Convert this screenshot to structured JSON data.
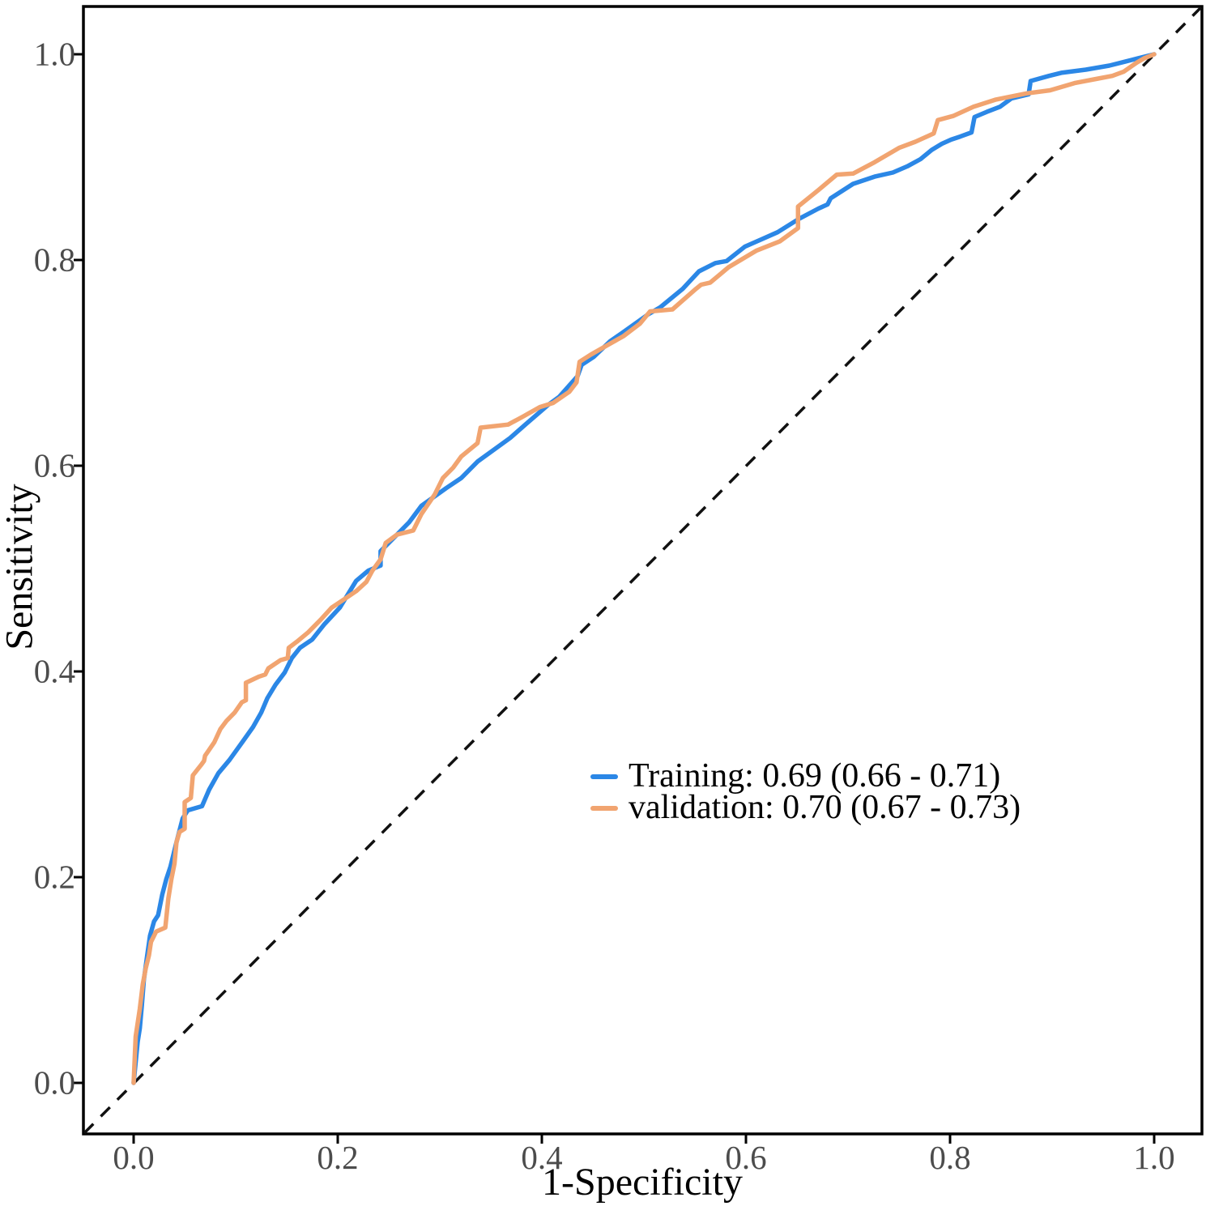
{
  "colors": {
    "background": "#ffffff",
    "panel_border": "#000000",
    "reference_line": "#111111",
    "axis_tick_text": "#4c4c4c",
    "axis_title_text": "#000000",
    "training_blue": "#2b87e6",
    "validation_orange": "#f1a470"
  },
  "chart_data": {
    "type": "line",
    "title": "",
    "xlabel": "1-Specificity",
    "ylabel": "Sensitivity",
    "xlim": [
      0,
      1
    ],
    "ylim": [
      0,
      1
    ],
    "x_ticks": [
      "0.0",
      "0.2",
      "0.4",
      "0.6",
      "0.8",
      "1.0"
    ],
    "y_ticks": [
      "0.0",
      "0.2",
      "0.4",
      "0.6",
      "0.8",
      "1.0"
    ],
    "grid": "off",
    "legend_position": "inside-right-middle",
    "reference_line": {
      "style": "dashed-diagonal",
      "from": [
        0,
        0
      ],
      "to": [
        1,
        1
      ]
    },
    "series": [
      {
        "name": "Training",
        "auc": "0.69",
        "ci": "0.66 - 0.71",
        "legend_label": "Training: 0.69 (0.66 - 0.71)",
        "color": "#2b87e6",
        "points": [
          [
            0,
            0
          ],
          [
            0.004,
            0.04
          ],
          [
            0.006,
            0.053
          ],
          [
            0.008,
            0.075
          ],
          [
            0.01,
            0.1
          ],
          [
            0.013,
            0.122
          ],
          [
            0.016,
            0.143
          ],
          [
            0.02,
            0.157
          ],
          [
            0.024,
            0.163
          ],
          [
            0.028,
            0.183
          ],
          [
            0.032,
            0.198
          ],
          [
            0.036,
            0.21
          ],
          [
            0.042,
            0.234
          ],
          [
            0.048,
            0.257
          ],
          [
            0.053,
            0.265
          ],
          [
            0.067,
            0.269
          ],
          [
            0.074,
            0.285
          ],
          [
            0.083,
            0.301
          ],
          [
            0.094,
            0.314
          ],
          [
            0.107,
            0.332
          ],
          [
            0.117,
            0.346
          ],
          [
            0.125,
            0.36
          ],
          [
            0.131,
            0.374
          ],
          [
            0.139,
            0.387
          ],
          [
            0.148,
            0.399
          ],
          [
            0.155,
            0.413
          ],
          [
            0.163,
            0.423
          ],
          [
            0.175,
            0.431
          ],
          [
            0.187,
            0.446
          ],
          [
            0.202,
            0.462
          ],
          [
            0.218,
            0.488
          ],
          [
            0.23,
            0.498
          ],
          [
            0.242,
            0.503
          ],
          [
            0.242,
            0.517
          ],
          [
            0.25,
            0.525
          ],
          [
            0.27,
            0.545
          ],
          [
            0.282,
            0.561
          ],
          [
            0.306,
            0.578
          ],
          [
            0.321,
            0.588
          ],
          [
            0.337,
            0.604
          ],
          [
            0.369,
            0.627
          ],
          [
            0.385,
            0.641
          ],
          [
            0.406,
            0.659
          ],
          [
            0.417,
            0.667
          ],
          [
            0.435,
            0.687
          ],
          [
            0.439,
            0.698
          ],
          [
            0.451,
            0.706
          ],
          [
            0.467,
            0.721
          ],
          [
            0.48,
            0.73
          ],
          [
            0.504,
            0.747
          ],
          [
            0.516,
            0.754
          ],
          [
            0.538,
            0.772
          ],
          [
            0.554,
            0.789
          ],
          [
            0.57,
            0.797
          ],
          [
            0.581,
            0.799
          ],
          [
            0.599,
            0.813
          ],
          [
            0.615,
            0.82
          ],
          [
            0.631,
            0.827
          ],
          [
            0.652,
            0.84
          ],
          [
            0.671,
            0.85
          ],
          [
            0.68,
            0.854
          ],
          [
            0.683,
            0.86
          ],
          [
            0.705,
            0.874
          ],
          [
            0.726,
            0.881
          ],
          [
            0.744,
            0.885
          ],
          [
            0.758,
            0.891
          ],
          [
            0.771,
            0.898
          ],
          [
            0.782,
            0.907
          ],
          [
            0.792,
            0.913
          ],
          [
            0.801,
            0.917
          ],
          [
            0.81,
            0.92
          ],
          [
            0.821,
            0.924
          ],
          [
            0.824,
            0.939
          ],
          [
            0.836,
            0.944
          ],
          [
            0.849,
            0.949
          ],
          [
            0.86,
            0.957
          ],
          [
            0.877,
            0.961
          ],
          [
            0.879,
            0.974
          ],
          [
            0.897,
            0.979
          ],
          [
            0.909,
            0.982
          ],
          [
            0.933,
            0.985
          ],
          [
            0.956,
            0.989
          ],
          [
            0.972,
            0.993
          ],
          [
            0.984,
            0.996
          ],
          [
            1,
            1
          ]
        ]
      },
      {
        "name": "validation",
        "auc": "0.70",
        "ci": "0.67 - 0.73",
        "legend_label": "validation: 0.70 (0.67 - 0.73)",
        "color": "#f1a470",
        "points": [
          [
            0,
            0
          ],
          [
            0.002,
            0.045
          ],
          [
            0.006,
            0.072
          ],
          [
            0.009,
            0.096
          ],
          [
            0.012,
            0.112
          ],
          [
            0.015,
            0.124
          ],
          [
            0.017,
            0.137
          ],
          [
            0.022,
            0.147
          ],
          [
            0.031,
            0.151
          ],
          [
            0.034,
            0.179
          ],
          [
            0.037,
            0.198
          ],
          [
            0.04,
            0.213
          ],
          [
            0.042,
            0.234
          ],
          [
            0.045,
            0.244
          ],
          [
            0.05,
            0.247
          ],
          [
            0.05,
            0.273
          ],
          [
            0.056,
            0.277
          ],
          [
            0.058,
            0.299
          ],
          [
            0.066,
            0.309
          ],
          [
            0.069,
            0.313
          ],
          [
            0.07,
            0.318
          ],
          [
            0.079,
            0.331
          ],
          [
            0.085,
            0.344
          ],
          [
            0.091,
            0.352
          ],
          [
            0.099,
            0.36
          ],
          [
            0.106,
            0.37
          ],
          [
            0.11,
            0.372
          ],
          [
            0.11,
            0.389
          ],
          [
            0.123,
            0.395
          ],
          [
            0.129,
            0.397
          ],
          [
            0.132,
            0.403
          ],
          [
            0.144,
            0.411
          ],
          [
            0.151,
            0.413
          ],
          [
            0.152,
            0.423
          ],
          [
            0.16,
            0.429
          ],
          [
            0.171,
            0.438
          ],
          [
            0.183,
            0.45
          ],
          [
            0.194,
            0.462
          ],
          [
            0.206,
            0.47
          ],
          [
            0.218,
            0.478
          ],
          [
            0.228,
            0.487
          ],
          [
            0.234,
            0.498
          ],
          [
            0.242,
            0.509
          ],
          [
            0.247,
            0.525
          ],
          [
            0.258,
            0.533
          ],
          [
            0.274,
            0.537
          ],
          [
            0.282,
            0.553
          ],
          [
            0.295,
            0.572
          ],
          [
            0.303,
            0.588
          ],
          [
            0.313,
            0.598
          ],
          [
            0.321,
            0.609
          ],
          [
            0.337,
            0.622
          ],
          [
            0.34,
            0.637
          ],
          [
            0.367,
            0.64
          ],
          [
            0.382,
            0.648
          ],
          [
            0.398,
            0.657
          ],
          [
            0.411,
            0.661
          ],
          [
            0.427,
            0.672
          ],
          [
            0.434,
            0.681
          ],
          [
            0.437,
            0.701
          ],
          [
            0.448,
            0.708
          ],
          [
            0.464,
            0.717
          ],
          [
            0.48,
            0.726
          ],
          [
            0.496,
            0.738
          ],
          [
            0.506,
            0.75
          ],
          [
            0.528,
            0.752
          ],
          [
            0.551,
            0.772
          ],
          [
            0.556,
            0.776
          ],
          [
            0.565,
            0.778
          ],
          [
            0.583,
            0.793
          ],
          [
            0.61,
            0.809
          ],
          [
            0.633,
            0.818
          ],
          [
            0.651,
            0.831
          ],
          [
            0.651,
            0.852
          ],
          [
            0.671,
            0.868
          ],
          [
            0.689,
            0.883
          ],
          [
            0.705,
            0.884
          ],
          [
            0.726,
            0.895
          ],
          [
            0.75,
            0.909
          ],
          [
            0.766,
            0.915
          ],
          [
            0.784,
            0.923
          ],
          [
            0.788,
            0.936
          ],
          [
            0.803,
            0.94
          ],
          [
            0.823,
            0.949
          ],
          [
            0.845,
            0.956
          ],
          [
            0.875,
            0.962
          ],
          [
            0.898,
            0.965
          ],
          [
            0.922,
            0.972
          ],
          [
            0.943,
            0.976
          ],
          [
            0.959,
            0.979
          ],
          [
            0.97,
            0.983
          ],
          [
            0.983,
            0.992
          ],
          [
            0.99,
            0.996
          ],
          [
            1,
            1
          ]
        ]
      }
    ]
  }
}
